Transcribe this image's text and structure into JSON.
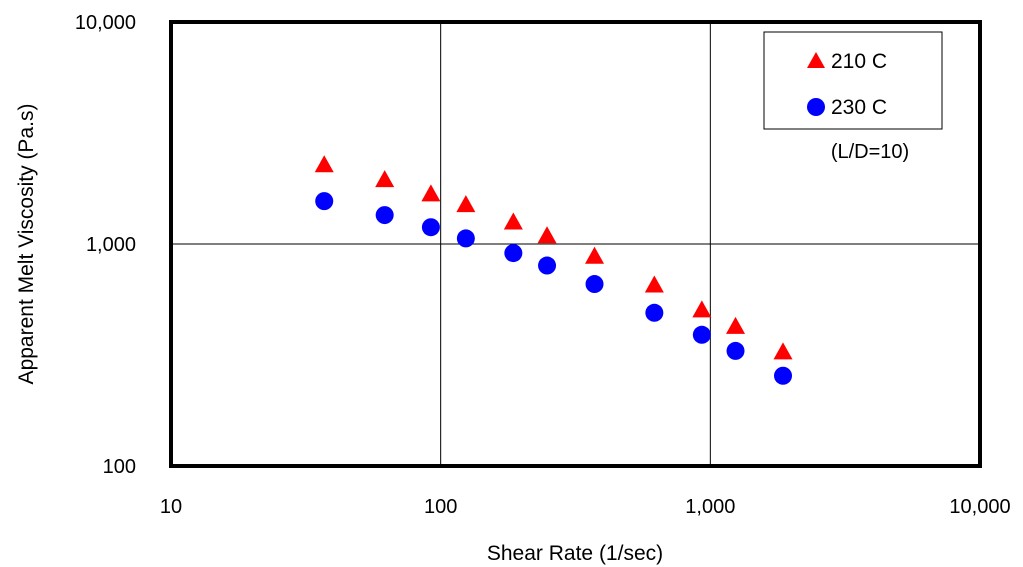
{
  "chart_data": {
    "type": "scatter",
    "title": "",
    "xlabel": "Shear Rate (1/sec)",
    "ylabel": "Apparent Melt Viscosity (Pa.s)",
    "xscale": "log",
    "yscale": "log",
    "xlim": [
      10,
      10000
    ],
    "ylim": [
      100,
      10000
    ],
    "x_ticks": [
      10,
      100,
      1000,
      10000
    ],
    "y_ticks": [
      100,
      1000,
      10000
    ],
    "x_tick_labels": [
      "10",
      "100",
      "1,000",
      "10,000"
    ],
    "y_tick_labels": [
      "100",
      "1,000",
      "10,000"
    ],
    "grid": "major",
    "legend_position": "top-right",
    "annotation": "(L/D=10)",
    "series": [
      {
        "name": "210 C",
        "marker": "triangle",
        "color": "#ff0000",
        "x": [
          37,
          62,
          92,
          124,
          186,
          248,
          372,
          620,
          930,
          1240,
          1860
        ],
        "y": [
          2300,
          1970,
          1700,
          1520,
          1270,
          1100,
          890,
          660,
          510,
          430,
          330
        ]
      },
      {
        "name": "230 C",
        "marker": "circle",
        "color": "#0000ff",
        "x": [
          37,
          62,
          92,
          124,
          186,
          248,
          372,
          620,
          930,
          1240,
          1860
        ],
        "y": [
          1560,
          1350,
          1190,
          1060,
          910,
          800,
          660,
          490,
          390,
          330,
          255
        ]
      }
    ]
  }
}
